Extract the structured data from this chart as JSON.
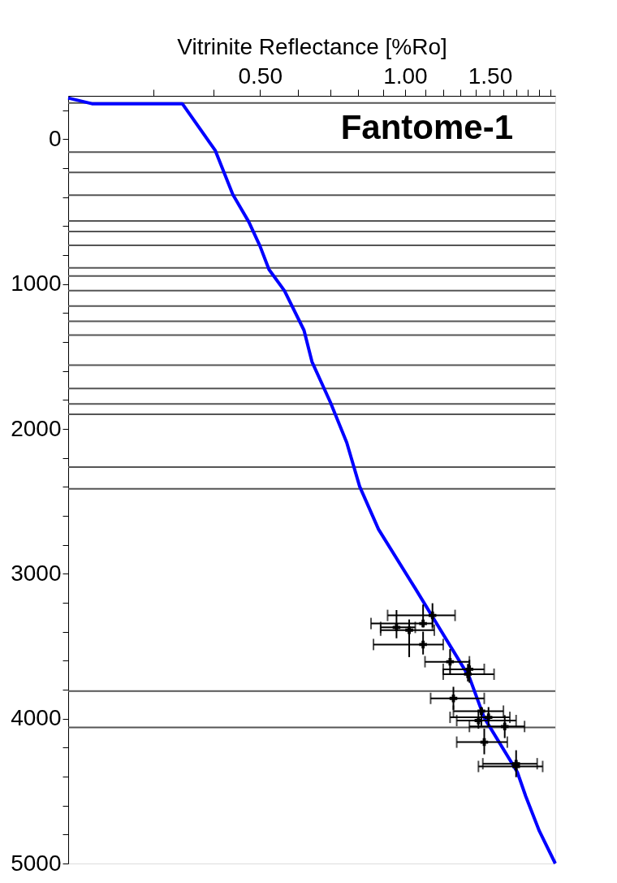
{
  "chart_data": {
    "type": "scatter",
    "xlabel": "Vitrinite Reflectance [%Ro]",
    "annotations": [
      "Fantome-1"
    ],
    "log": "x",
    "xlim": [
      0.2,
      2.05
    ],
    "xticks": [
      {
        "value": 0.3,
        "label": null
      },
      {
        "value": 0.4,
        "label": null
      },
      {
        "value": 0.5,
        "label": "0.50"
      },
      {
        "value": 0.6,
        "label": null
      },
      {
        "value": 0.7,
        "label": null
      },
      {
        "value": 0.8,
        "label": null
      },
      {
        "value": 0.9,
        "label": null
      },
      {
        "value": 1.0,
        "label": "1.00"
      },
      {
        "value": 1.1,
        "label": null
      },
      {
        "value": 1.2,
        "label": null
      },
      {
        "value": 1.3,
        "label": null
      },
      {
        "value": 1.4,
        "label": null
      },
      {
        "value": 1.5,
        "label": "1.50"
      },
      {
        "value": 1.6,
        "label": null
      },
      {
        "value": 1.7,
        "label": null
      },
      {
        "value": 1.8,
        "label": null
      },
      {
        "value": 1.9,
        "label": null
      },
      {
        "value": 2.0,
        "label": null
      }
    ],
    "ylim": [
      5000,
      -300
    ],
    "yticks": [
      {
        "value": -200,
        "label": null
      },
      0,
      {
        "value": 200,
        "label": null
      },
      {
        "value": 400,
        "label": null
      },
      {
        "value": 600,
        "label": null
      },
      {
        "value": 800,
        "label": null
      },
      1000,
      {
        "value": 1200,
        "label": null
      },
      {
        "value": 1400,
        "label": null
      },
      {
        "value": 1600,
        "label": null
      },
      {
        "value": 1800,
        "label": null
      },
      2000,
      {
        "value": 2200,
        "label": null
      },
      {
        "value": 2400,
        "label": null
      },
      {
        "value": 2600,
        "label": null
      },
      {
        "value": 2800,
        "label": null
      },
      3000,
      {
        "value": 3200,
        "label": null
      },
      {
        "value": 3400,
        "label": null
      },
      {
        "value": 3600,
        "label": null
      },
      {
        "value": 3800,
        "label": null
      },
      4000,
      {
        "value": 4200,
        "label": null
      },
      {
        "value": 4400,
        "label": null
      },
      {
        "value": 4600,
        "label": null
      },
      {
        "value": 4800,
        "label": null
      },
      5000
    ],
    "grid": false,
    "series": [
      {
        "type": "line",
        "color": "#0000ff",
        "marker": "none",
        "line_style": "solid",
        "x": [
          0.2,
          0.224,
          0.345,
          0.404,
          0.439,
          0.474,
          0.5,
          0.522,
          0.562,
          0.617,
          0.641,
          0.7,
          0.757,
          0.805,
          0.881,
          1.05,
          1.36,
          1.46,
          1.71,
          1.78,
          1.9,
          2.05
        ],
        "values": [
          -285,
          -246,
          -246,
          78,
          380,
          570,
          737,
          899,
          1045,
          1318,
          1536,
          1816,
          2095,
          2397,
          2693,
          3101,
          3715,
          3994,
          4369,
          4536,
          4777,
          5000
        ]
      },
      {
        "color": "#000000",
        "marker": "cross",
        "x": [
          1.14,
          1.09,
          0.96,
          1.02,
          1.09,
          1.24,
          1.36,
          1.35,
          1.26,
          1.44,
          1.49,
          1.42,
          1.61,
          1.46,
          1.7,
          1.7
        ],
        "values": [
          3287,
          3343,
          3370,
          3389,
          3488,
          3607,
          3659,
          3693,
          3860,
          3948,
          3991,
          4013,
          4054,
          4162,
          4311,
          4330
        ],
        "xerrors": [
          [
            0.92,
            1.27
          ],
          [
            0.85,
            1.14
          ],
          [
            0.89,
            1.05
          ],
          [
            0.89,
            1.15
          ],
          [
            0.86,
            1.2
          ],
          [
            1.1,
            1.36
          ],
          [
            1.2,
            1.46
          ],
          [
            1.2,
            1.53
          ],
          [
            1.13,
            1.46
          ],
          [
            1.26,
            1.6
          ],
          [
            1.24,
            1.65
          ],
          [
            1.28,
            1.7
          ],
          [
            1.36,
            1.77
          ],
          [
            1.28,
            1.63
          ],
          [
            1.45,
            1.88
          ],
          [
            1.42,
            1.93
          ]
        ],
        "errors": [
          [
            3203,
            3370
          ],
          [
            3212,
            3370
          ],
          [
            3250,
            3445
          ],
          [
            3315,
            3575
          ],
          [
            3399,
            3557
          ],
          [
            3520,
            3696
          ],
          [
            3594,
            3752
          ],
          [
            3622,
            3743
          ],
          [
            3780,
            3939
          ],
          [
            3920,
            4050
          ],
          [
            3920,
            4050
          ],
          [
            3957,
            4069
          ],
          [
            3976,
            4134
          ],
          [
            4069,
            4246
          ],
          [
            4218,
            4404
          ],
          null
        ]
      }
    ],
    "ref_lines": [
      {
        "axis": "y",
        "value": -251,
        "color": "#555555"
      },
      {
        "axis": "y",
        "value": 89,
        "color": "#555555"
      },
      {
        "axis": "y",
        "value": 229,
        "color": "#555555"
      },
      {
        "axis": "y",
        "value": 385,
        "color": "#555555"
      },
      {
        "axis": "y",
        "value": 564,
        "color": "#555555"
      },
      {
        "axis": "y",
        "value": 637,
        "color": "#555555"
      },
      {
        "axis": "y",
        "value": 732,
        "color": "#555555"
      },
      {
        "axis": "y",
        "value": 888,
        "color": "#555555"
      },
      {
        "axis": "y",
        "value": 944,
        "color": "#555555"
      },
      {
        "axis": "y",
        "value": 1045,
        "color": "#555555"
      },
      {
        "axis": "y",
        "value": 1151,
        "color": "#555555"
      },
      {
        "axis": "y",
        "value": 1257,
        "color": "#555555"
      },
      {
        "axis": "y",
        "value": 1352,
        "color": "#555555"
      },
      {
        "axis": "y",
        "value": 1559,
        "color": "#555555"
      },
      {
        "axis": "y",
        "value": 1721,
        "color": "#555555"
      },
      {
        "axis": "y",
        "value": 1827,
        "color": "#555555"
      },
      {
        "axis": "y",
        "value": 1899,
        "color": "#555555"
      },
      {
        "axis": "y",
        "value": 2263,
        "color": "#555555"
      },
      {
        "axis": "y",
        "value": 2413,
        "color": "#555555"
      },
      {
        "axis": "y",
        "value": 3810,
        "color": "#555555"
      },
      {
        "axis": "y",
        "value": 4061,
        "color": "#555555"
      }
    ]
  }
}
